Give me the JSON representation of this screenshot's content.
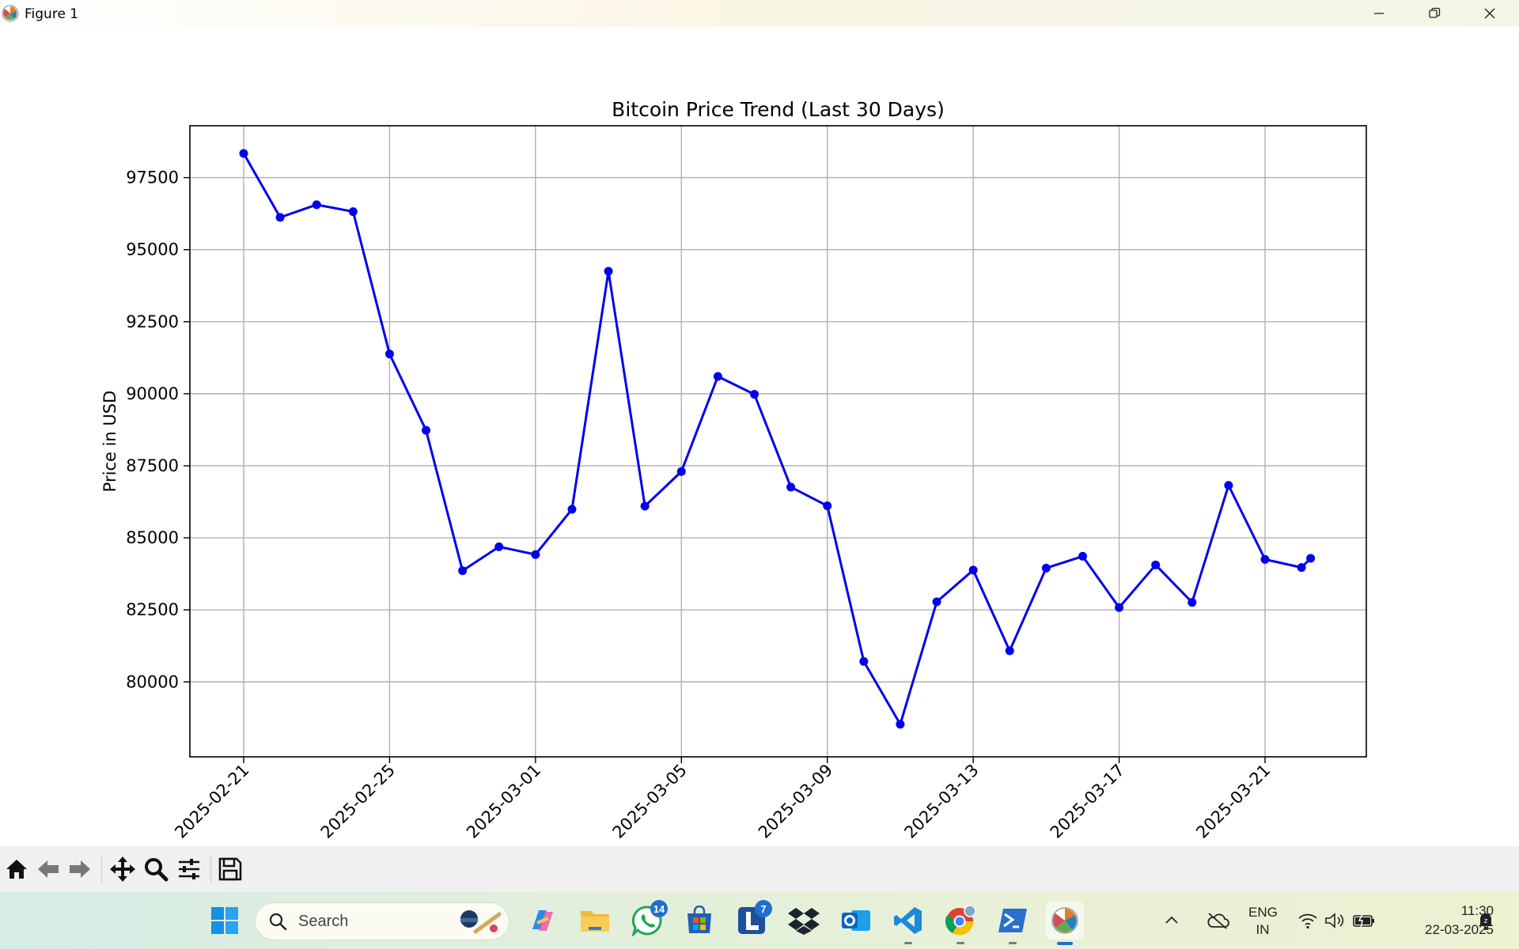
{
  "window": {
    "title": "Figure 1"
  },
  "chart_data": {
    "type": "line",
    "title": "Bitcoin Price Trend (Last 30 Days)",
    "xlabel": "",
    "ylabel": "Price in USD",
    "x": [
      "2025-02-21",
      "2025-02-22",
      "2025-02-23",
      "2025-02-24",
      "2025-02-25",
      "2025-02-26",
      "2025-02-27",
      "2025-02-28",
      "2025-03-01",
      "2025-03-02",
      "2025-03-03",
      "2025-03-04",
      "2025-03-05",
      "2025-03-06",
      "2025-03-07",
      "2025-03-08",
      "2025-03-09",
      "2025-03-10",
      "2025-03-11",
      "2025-03-12",
      "2025-03-13",
      "2025-03-14",
      "2025-03-15",
      "2025-03-16",
      "2025-03-17",
      "2025-03-18",
      "2025-03-19",
      "2025-03-20",
      "2025-03-21",
      "2025-03-22",
      "2025-03-22T06:00"
    ],
    "series": [
      {
        "values": [
          98340,
          96120,
          96560,
          96320,
          91380,
          88730,
          83860,
          84690,
          84420,
          85990,
          94250,
          86100,
          87300,
          90600,
          89980,
          86760,
          86110,
          80710,
          78530,
          82780,
          83880,
          81080,
          83950,
          84360,
          82580,
          84060,
          82760,
          86820,
          84250,
          83970,
          84290
        ]
      }
    ],
    "xticks": [
      "2025-02-21",
      "2025-02-25",
      "2025-03-01",
      "2025-03-05",
      "2025-03-09",
      "2025-03-13",
      "2025-03-17",
      "2025-03-21"
    ],
    "yticks": [
      80000,
      82500,
      85000,
      87500,
      90000,
      92500,
      95000,
      97500
    ],
    "ylim": [
      77400,
      99300
    ],
    "grid": true,
    "line_color": "#0000ee",
    "marker": "circle"
  },
  "toolbar": {
    "buttons": [
      "home-icon",
      "back-arrow-icon",
      "forward-arrow-icon",
      "pan-icon",
      "zoom-icon",
      "configure-subplots-icon",
      "save-icon"
    ]
  },
  "taskbar": {
    "search_placeholder": "Search",
    "whatsapp_badge": "14",
    "launcher_badge": "7",
    "lang_top": "ENG",
    "lang_bottom": "IN",
    "time": "11:30",
    "date": "22-03-2025"
  }
}
